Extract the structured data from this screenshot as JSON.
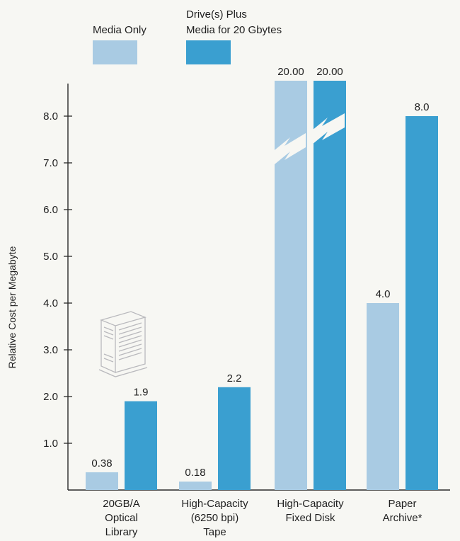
{
  "chart_data": {
    "type": "bar",
    "ylabel": "Relative Cost per Megabyte",
    "ylim": [
      0,
      8.8
    ],
    "yticks": [
      "1.0",
      "2.0",
      "3.0",
      "4.0",
      "5.0",
      "6.0",
      "7.0",
      "8.0"
    ],
    "categories": [
      [
        "20GB/A",
        "Optical",
        "Library"
      ],
      [
        "High-Capacity",
        "(6250 bpi)",
        "Tape"
      ],
      [
        "High-Capacity",
        "Fixed Disk"
      ],
      [
        "Paper",
        "Archive*"
      ]
    ],
    "series": [
      {
        "name": "Media Only",
        "legend_lines": [
          "Media Only"
        ],
        "color": "#a9cbe3",
        "values": [
          0.38,
          0.18,
          20.0,
          4.0
        ],
        "labels": [
          "0.38",
          "0.18",
          "20.00",
          "4.0"
        ]
      },
      {
        "name": "Drive(s) Plus Media for 20 Gbytes",
        "legend_lines": [
          "Drive(s) Plus",
          "Media for 20 Gbytes"
        ],
        "color": "#3a9fd0",
        "values": [
          1.9,
          2.2,
          20.0,
          8.0
        ],
        "labels": [
          "1.9",
          "2.2",
          "20.00",
          "8.0"
        ]
      }
    ],
    "axis_break": {
      "category_index": 2,
      "note": "bars truncated beyond axis top"
    },
    "colors": {
      "media_only": "#a9cbe3",
      "drive_plus_media": "#3a9fd0",
      "axis": "#2a2a2a"
    },
    "illustration": "optical-library-cabinet-icon"
  }
}
